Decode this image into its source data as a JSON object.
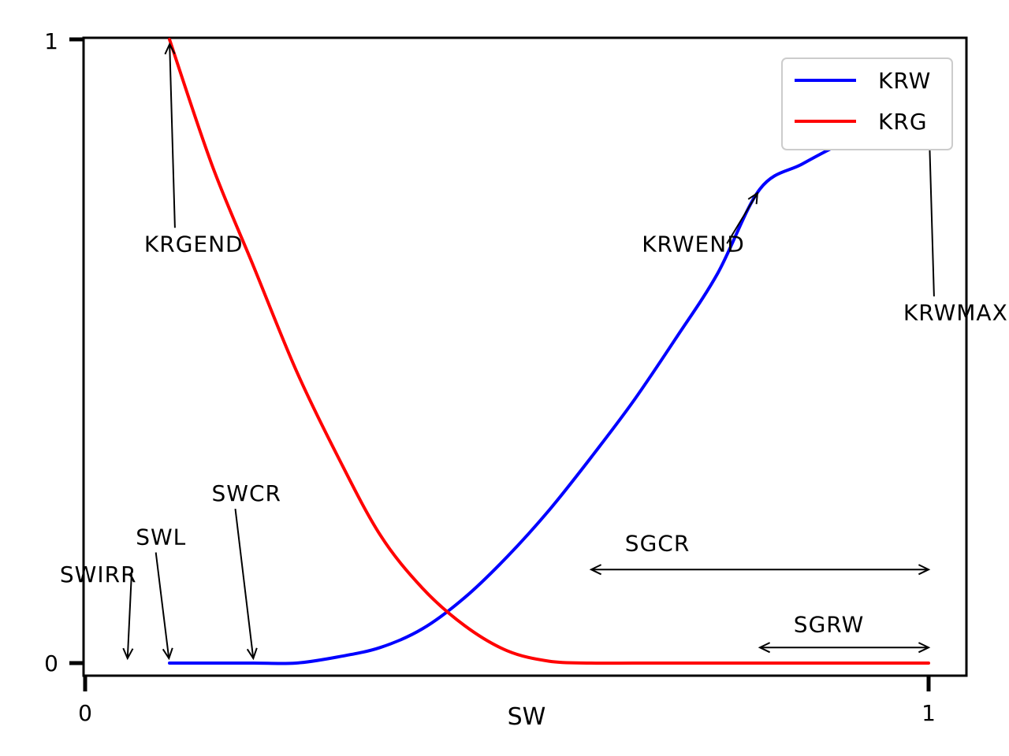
{
  "chart_data": {
    "type": "line",
    "xlabel": "SW",
    "ylabel": "",
    "xlim": [
      0,
      1
    ],
    "ylim": [
      0,
      1
    ],
    "xticks": [
      "0",
      "1"
    ],
    "yticks": [
      "0",
      "1"
    ],
    "legend_position": "top-right",
    "series": [
      {
        "name": "KRW",
        "color": "#0000ff",
        "x": [
          0.1,
          0.15,
          0.2,
          0.25,
          0.3,
          0.35,
          0.4,
          0.45,
          0.5,
          0.55,
          0.6,
          0.65,
          0.7,
          0.75,
          0.8,
          0.85,
          0.9,
          0.95,
          1.0
        ],
        "y": [
          0.0,
          0.0,
          0.0,
          0.0,
          0.01,
          0.025,
          0.055,
          0.105,
          0.17,
          0.245,
          0.33,
          0.42,
          0.52,
          0.625,
          0.76,
          0.8,
          0.835,
          0.86,
          0.885
        ]
      },
      {
        "name": "KRG",
        "color": "#ff0000",
        "x": [
          0.1,
          0.15,
          0.2,
          0.25,
          0.3,
          0.35,
          0.4,
          0.45,
          0.5,
          0.55,
          0.6,
          0.65,
          0.7,
          0.75,
          0.8,
          0.85,
          0.9,
          0.95,
          1.0
        ],
        "y": [
          1.0,
          0.8,
          0.635,
          0.47,
          0.33,
          0.205,
          0.12,
          0.06,
          0.02,
          0.003,
          0.0,
          0.0,
          0.0,
          0.0,
          0.0,
          0.0,
          0.0,
          0.0,
          0.0
        ]
      }
    ],
    "annotations": [
      {
        "text": "KRGEND",
        "target": [
          0.1,
          1.0
        ],
        "label_at": [
          0.07,
          0.66
        ],
        "arrow": "single"
      },
      {
        "text": "KRWEND",
        "target": [
          0.8,
          0.76
        ],
        "label_at": [
          0.66,
          0.66
        ],
        "arrow": "single"
      },
      {
        "text": "KRWMAX",
        "target": [
          1.0,
          0.885
        ],
        "label_at": [
          0.97,
          0.55
        ],
        "arrow": "single"
      },
      {
        "text": "SWIRR",
        "target": [
          0.05,
          0.0
        ],
        "label_at": [
          -0.03,
          0.13
        ],
        "arrow": "single"
      },
      {
        "text": "SWL",
        "target": [
          0.1,
          0.0
        ],
        "label_at": [
          0.06,
          0.19
        ],
        "arrow": "single"
      },
      {
        "text": "SWCR",
        "target": [
          0.2,
          0.0
        ],
        "label_at": [
          0.15,
          0.26
        ],
        "arrow": "single"
      },
      {
        "text": "SGCR",
        "span": [
          0.6,
          1.0
        ],
        "y": 0.15,
        "label_at": [
          0.64,
          0.18
        ],
        "arrow": "double"
      },
      {
        "text": "SGRW",
        "span": [
          0.8,
          1.0
        ],
        "y": 0.025,
        "label_at": [
          0.84,
          0.05
        ],
        "arrow": "double"
      }
    ]
  }
}
